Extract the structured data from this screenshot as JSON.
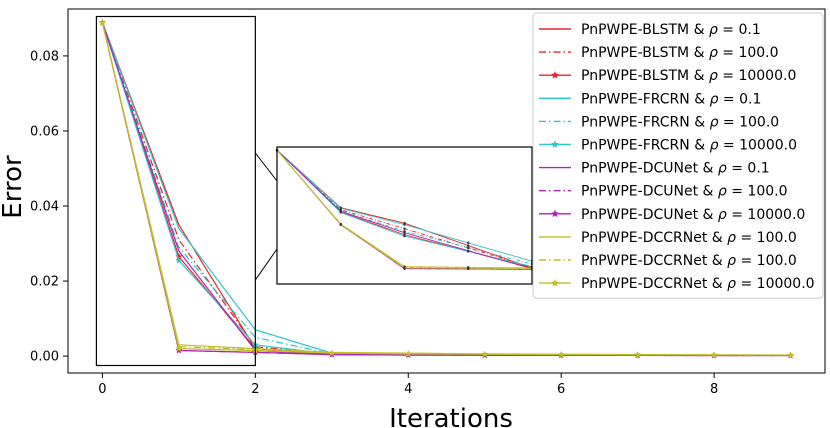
{
  "chart_data": {
    "type": "line",
    "title": "",
    "xlabel": "Iterations",
    "ylabel": "Error",
    "xlim": [
      -0.45,
      9.45
    ],
    "ylim": [
      -0.0045,
      0.0925
    ],
    "xticks": [
      0,
      2,
      4,
      6,
      8
    ],
    "xtick_labels": [
      "0",
      "2",
      "4",
      "6",
      "8"
    ],
    "yticks": [
      0.0,
      0.02,
      0.04,
      0.06,
      0.08
    ],
    "ytick_labels": [
      "0.00",
      "0.02",
      "0.04",
      "0.06",
      "0.08"
    ],
    "legend_position": "top-right",
    "x": [
      0,
      1,
      2,
      3,
      4,
      5,
      6,
      7,
      8,
      9
    ],
    "series": [
      {
        "label": "PnPWPE-BLSTM & ρ = 0.1",
        "name": "PnPWPE-BLSTM & ",
        "rho": "0.1",
        "color": "#e6262a",
        "dash": "solid",
        "marker": "none",
        "values": [
          0.0889,
          0.035,
          0.002,
          0.0005,
          0.00035,
          0.0003,
          0.00025,
          0.00022,
          0.0002,
          0.00018
        ]
      },
      {
        "label": "PnPWPE-BLSTM & ρ = 100.0",
        "name": "PnPWPE-BLSTM & ",
        "rho": "100.0",
        "color": "#e6262a",
        "dash": "dashdot",
        "marker": "none",
        "values": [
          0.0889,
          0.031,
          0.0025,
          0.00055,
          0.0004,
          0.00032,
          0.00027,
          0.00024,
          0.00021,
          0.00019
        ]
      },
      {
        "label": "PnPWPE-BLSTM & ρ = 10000.0",
        "name": "PnPWPE-BLSTM & ",
        "rho": "10000.0",
        "color": "#e6262a",
        "dash": "solid",
        "marker": "star",
        "values": [
          0.0889,
          0.0265,
          0.002,
          0.0005,
          0.00035,
          0.0003,
          0.00025,
          0.00022,
          0.0002,
          0.00018
        ]
      },
      {
        "label": "PnPWPE-FRCRN & ρ = 0.1",
        "name": "PnPWPE-FRCRN & ",
        "rho": "0.1",
        "color": "#2ec4cc",
        "dash": "solid",
        "marker": "none",
        "values": [
          0.0889,
          0.034,
          0.007,
          0.0008,
          0.0005,
          0.0004,
          0.00035,
          0.0003,
          0.00028,
          0.00025
        ]
      },
      {
        "label": "PnPWPE-FRCRN & ρ = 100.0",
        "name": "PnPWPE-FRCRN & ",
        "rho": "100.0",
        "color": "#2ec4cc",
        "dash": "dashdot",
        "marker": "none",
        "values": [
          0.0889,
          0.029,
          0.005,
          0.0006,
          0.00045,
          0.00035,
          0.0003,
          0.00027,
          0.00025,
          0.00022
        ]
      },
      {
        "label": "PnPWPE-FRCRN & ρ = 10000.0",
        "name": "PnPWPE-FRCRN & ",
        "rho": "10000.0",
        "color": "#2ec4cc",
        "dash": "solid",
        "marker": "star",
        "values": [
          0.0889,
          0.0255,
          0.003,
          0.0005,
          0.0004,
          0.00032,
          0.00028,
          0.00025,
          0.00022,
          0.0002
        ]
      },
      {
        "label": "PnPWPE-DCUNet & ρ = 0.1",
        "name": "PnPWPE-DCUNet & ",
        "rho": "0.1",
        "color": "#b021b8",
        "dash": "solid",
        "marker": "none",
        "values": [
          0.0889,
          0.028,
          0.0015,
          0.0004,
          0.0003,
          0.00025,
          0.0002,
          0.00018,
          0.00016,
          0.00015
        ]
      },
      {
        "label": "PnPWPE-DCUNet & ρ = 100.0",
        "name": "PnPWPE-DCUNet & ",
        "rho": "100.0",
        "color": "#b021b8",
        "dash": "dashdot",
        "marker": "none",
        "values": [
          0.0889,
          0.0015,
          0.001,
          0.0004,
          0.0003,
          0.00025,
          0.0002,
          0.00018,
          0.00016,
          0.00015
        ]
      },
      {
        "label": "PnPWPE-DCUNet & ρ = 10000.0",
        "name": "PnPWPE-DCUNet & ",
        "rho": "10000.0",
        "color": "#b021b8",
        "dash": "solid",
        "marker": "star",
        "values": [
          0.0889,
          0.0015,
          0.001,
          0.0004,
          0.0003,
          0.00025,
          0.0002,
          0.00018,
          0.00016,
          0.00015
        ]
      },
      {
        "label": "PnPWPE-DCCRNet & ρ = 100.0",
        "name": "PnPWPE-DCCRNet & ",
        "rho": "100.0",
        "color": "#bfbf26",
        "dash": "solid",
        "marker": "none",
        "values": [
          0.0889,
          0.003,
          0.002,
          0.001,
          0.0008,
          0.0006,
          0.0005,
          0.0004,
          0.00035,
          0.0003
        ]
      },
      {
        "label": "PnPWPE-DCCRNet & ρ = 100.0",
        "name": "PnPWPE-DCCRNet & ",
        "rho": "100.0",
        "color": "#bfbf26",
        "dash": "dashdot",
        "marker": "none",
        "values": [
          0.0889,
          0.0025,
          0.0018,
          0.0009,
          0.0007,
          0.00055,
          0.00045,
          0.00038,
          0.00032,
          0.00028
        ]
      },
      {
        "label": "PnPWPE-DCCRNet & ρ = 10000.0",
        "name": "PnPWPE-DCCRNet & ",
        "rho": "10000.0",
        "color": "#bfbf26",
        "dash": "solid",
        "marker": "star",
        "values": [
          0.0889,
          0.002,
          0.0015,
          0.0008,
          0.0006,
          0.0005,
          0.0004,
          0.00035,
          0.0003,
          0.00026
        ]
      }
    ],
    "rho_symbol": "ρ",
    "equals_sign": "=",
    "inset": {
      "zoom_xlim": [
        0,
        2
      ],
      "zoom_ylim": [
        -0.0025,
        0.0905
      ],
      "xlim": [
        0,
        2
      ],
      "ylim": [
        0.0005,
        0.089
      ]
    }
  }
}
